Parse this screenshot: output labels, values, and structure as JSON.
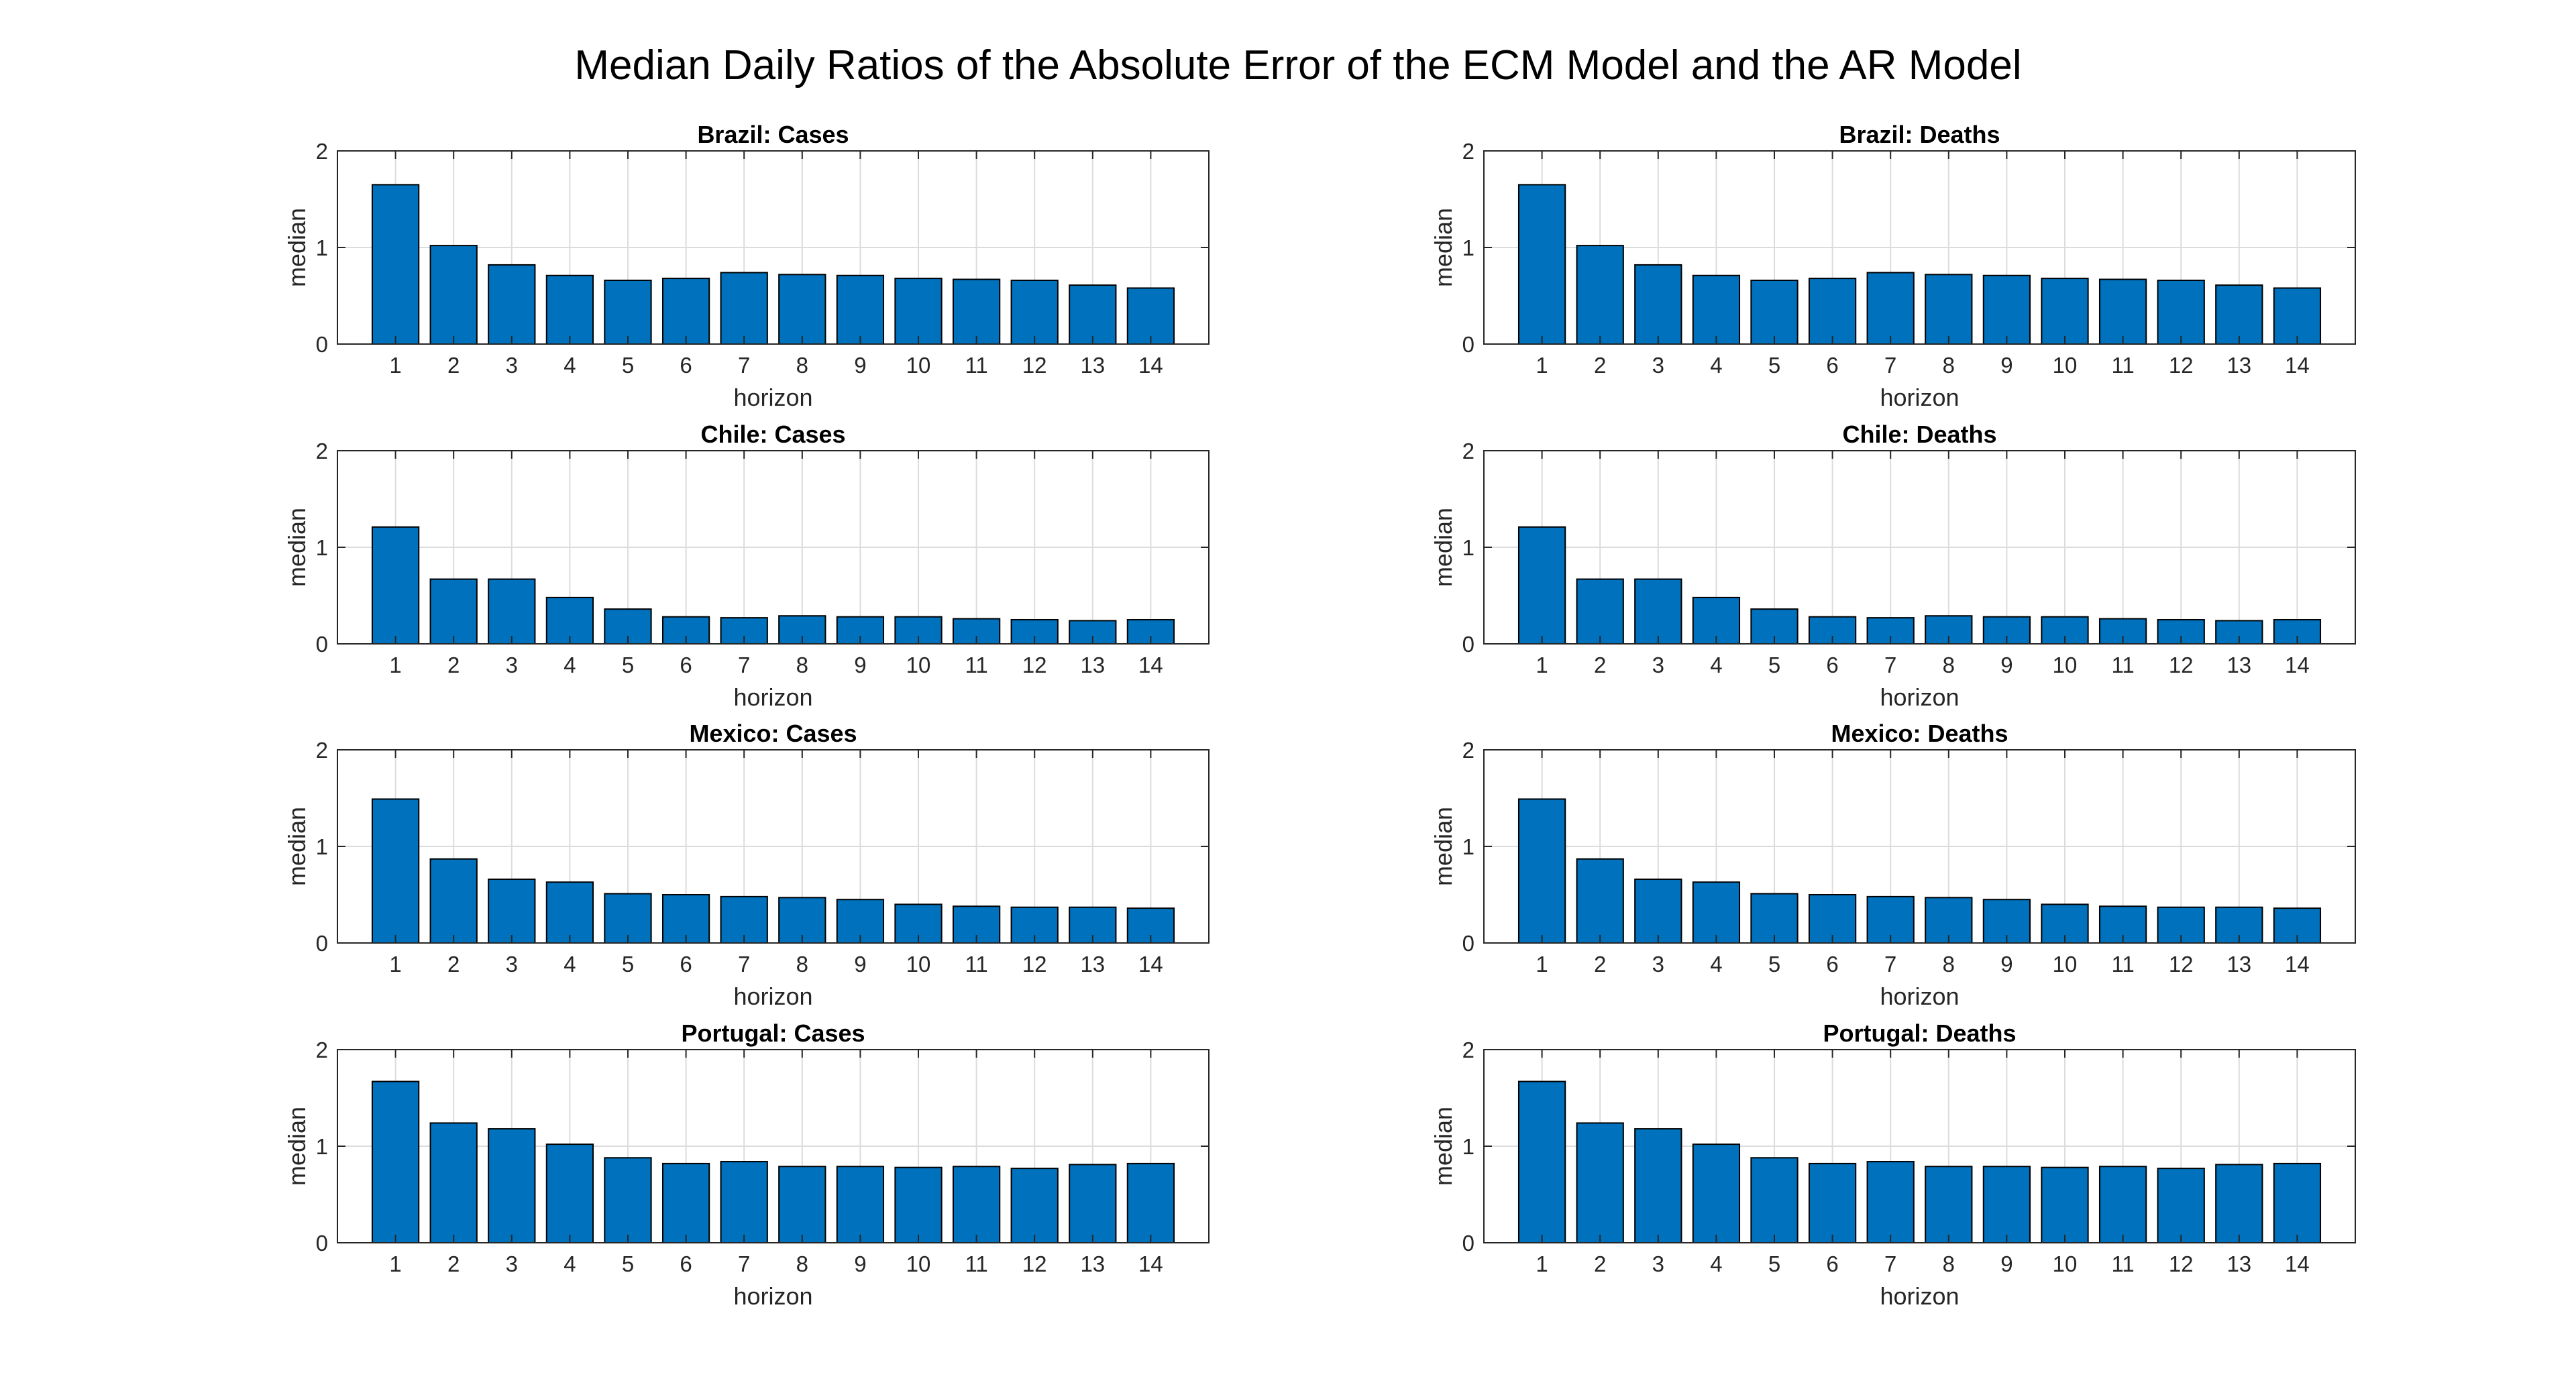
{
  "figure": {
    "title": "Median Daily Ratios of the Absolute Error of the ECM Model and the AR Model"
  },
  "colors": {
    "bar": "#0072BD",
    "bar_edge": "#000000",
    "grid": "#dcdcdc",
    "axis": "#262626"
  },
  "chart_data": [
    {
      "type": "bar",
      "title": "Brazil: Cases",
      "xlabel": "horizon",
      "ylabel": "median",
      "categories": [
        "1",
        "2",
        "3",
        "4",
        "5",
        "6",
        "7",
        "8",
        "9",
        "10",
        "11",
        "12",
        "13",
        "14"
      ],
      "values": [
        1.65,
        1.02,
        0.82,
        0.71,
        0.66,
        0.68,
        0.74,
        0.72,
        0.71,
        0.68,
        0.67,
        0.66,
        0.61,
        0.58
      ],
      "ylim": [
        0,
        2
      ],
      "yticks": [
        "0",
        "1",
        "2"
      ],
      "grid": true
    },
    {
      "type": "bar",
      "title": "Brazil: Deaths",
      "xlabel": "horizon",
      "ylabel": "median",
      "categories": [
        "1",
        "2",
        "3",
        "4",
        "5",
        "6",
        "7",
        "8",
        "9",
        "10",
        "11",
        "12",
        "13",
        "14"
      ],
      "values": [
        1.65,
        1.02,
        0.82,
        0.71,
        0.66,
        0.68,
        0.74,
        0.72,
        0.71,
        0.68,
        0.67,
        0.66,
        0.61,
        0.58
      ],
      "ylim": [
        0,
        2
      ],
      "yticks": [
        "0",
        "1",
        "2"
      ],
      "grid": true
    },
    {
      "type": "bar",
      "title": "Chile: Cases",
      "xlabel": "horizon",
      "ylabel": "median",
      "categories": [
        "1",
        "2",
        "3",
        "4",
        "5",
        "6",
        "7",
        "8",
        "9",
        "10",
        "11",
        "12",
        "13",
        "14"
      ],
      "values": [
        1.21,
        0.67,
        0.67,
        0.48,
        0.36,
        0.28,
        0.27,
        0.29,
        0.28,
        0.28,
        0.26,
        0.25,
        0.24,
        0.25
      ],
      "ylim": [
        0,
        2
      ],
      "yticks": [
        "0",
        "1",
        "2"
      ],
      "grid": true
    },
    {
      "type": "bar",
      "title": "Chile: Deaths",
      "xlabel": "horizon",
      "ylabel": "median",
      "categories": [
        "1",
        "2",
        "3",
        "4",
        "5",
        "6",
        "7",
        "8",
        "9",
        "10",
        "11",
        "12",
        "13",
        "14"
      ],
      "values": [
        1.21,
        0.67,
        0.67,
        0.48,
        0.36,
        0.28,
        0.27,
        0.29,
        0.28,
        0.28,
        0.26,
        0.25,
        0.24,
        0.25
      ],
      "ylim": [
        0,
        2
      ],
      "yticks": [
        "0",
        "1",
        "2"
      ],
      "grid": true
    },
    {
      "type": "bar",
      "title": "Mexico: Cases",
      "xlabel": "horizon",
      "ylabel": "median",
      "categories": [
        "1",
        "2",
        "3",
        "4",
        "5",
        "6",
        "7",
        "8",
        "9",
        "10",
        "11",
        "12",
        "13",
        "14"
      ],
      "values": [
        1.49,
        0.87,
        0.66,
        0.63,
        0.51,
        0.5,
        0.48,
        0.47,
        0.45,
        0.4,
        0.38,
        0.37,
        0.37,
        0.36
      ],
      "ylim": [
        0,
        2
      ],
      "yticks": [
        "0",
        "1",
        "2"
      ],
      "grid": true
    },
    {
      "type": "bar",
      "title": "Mexico: Deaths",
      "xlabel": "horizon",
      "ylabel": "median",
      "categories": [
        "1",
        "2",
        "3",
        "4",
        "5",
        "6",
        "7",
        "8",
        "9",
        "10",
        "11",
        "12",
        "13",
        "14"
      ],
      "values": [
        1.49,
        0.87,
        0.66,
        0.63,
        0.51,
        0.5,
        0.48,
        0.47,
        0.45,
        0.4,
        0.38,
        0.37,
        0.37,
        0.36
      ],
      "ylim": [
        0,
        2
      ],
      "yticks": [
        "0",
        "1",
        "2"
      ],
      "grid": true
    },
    {
      "type": "bar",
      "title": "Portugal: Cases",
      "xlabel": "horizon",
      "ylabel": "median",
      "categories": [
        "1",
        "2",
        "3",
        "4",
        "5",
        "6",
        "7",
        "8",
        "9",
        "10",
        "11",
        "12",
        "13",
        "14"
      ],
      "values": [
        1.67,
        1.24,
        1.18,
        1.02,
        0.88,
        0.82,
        0.84,
        0.79,
        0.79,
        0.78,
        0.79,
        0.77,
        0.81,
        0.82
      ],
      "ylim": [
        0,
        2
      ],
      "yticks": [
        "0",
        "1",
        "2"
      ],
      "grid": true
    },
    {
      "type": "bar",
      "title": "Portugal: Deaths",
      "xlabel": "horizon",
      "ylabel": "median",
      "categories": [
        "1",
        "2",
        "3",
        "4",
        "5",
        "6",
        "7",
        "8",
        "9",
        "10",
        "11",
        "12",
        "13",
        "14"
      ],
      "values": [
        1.67,
        1.24,
        1.18,
        1.02,
        0.88,
        0.82,
        0.84,
        0.79,
        0.79,
        0.78,
        0.79,
        0.77,
        0.81,
        0.82
      ],
      "ylim": [
        0,
        2
      ],
      "yticks": [
        "0",
        "1",
        "2"
      ],
      "grid": true
    }
  ]
}
